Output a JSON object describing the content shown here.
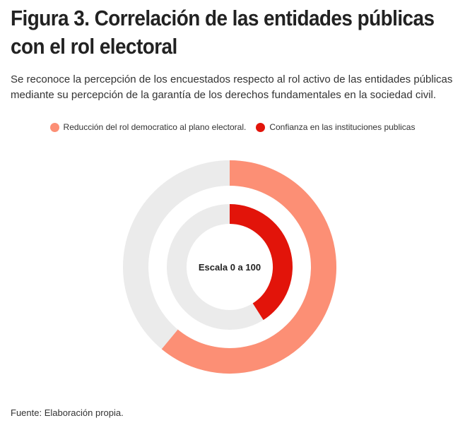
{
  "header": {
    "title": "Figura 3. Correlación de las entidades públicas con el rol electoral",
    "subtitle": "Se reconoce la percepción de los encuestados respecto al rol activo de las entidades públicas mediante su percepción de la garantía de los derechos fundamentales en la sociedad civil."
  },
  "chart_data": {
    "type": "radial-bar",
    "title": "Figura 3. Correlación de las entidades públicas con el rol electoral",
    "center_label": "Escala 0 a 100",
    "scale": [
      0,
      100
    ],
    "legend_placement": "top-center",
    "series": [
      {
        "name": "Reducción del rol democratico al plano electoral.",
        "value": 61,
        "color": "#FC8F75"
      },
      {
        "name": "Confianza en las instituciones publicas",
        "value": 41,
        "color": "#E2140A"
      }
    ],
    "track_color": "#EBEBEB"
  },
  "footer": {
    "source": "Fuente: Elaboración propia."
  }
}
